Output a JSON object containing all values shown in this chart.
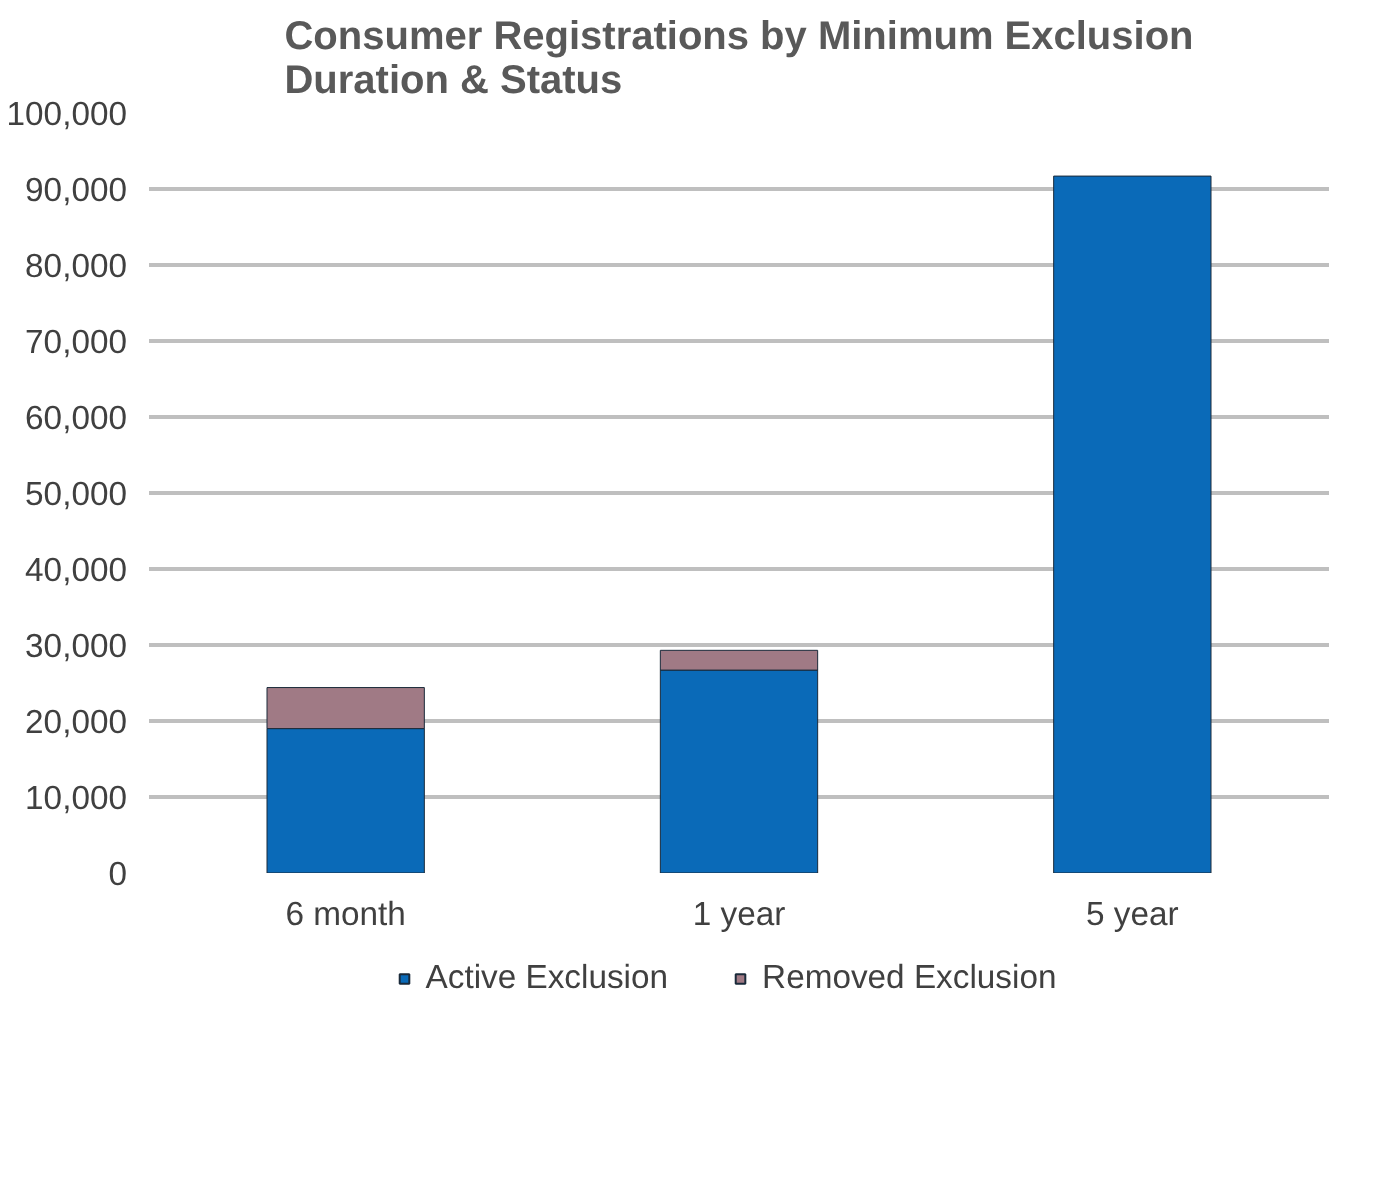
{
  "chart_data": {
    "type": "bar",
    "title": "Consumer Registrations by Minimum Exclusion\nDuration & Status",
    "categories": [
      "6 month",
      "1 year",
      "5 year"
    ],
    "stacked": true,
    "series": [
      {
        "name": "Active Exclusion",
        "color": "#0a6ab8",
        "values": [
          19000,
          26700,
          91700
        ]
      },
      {
        "name": "Removed Exclusion",
        "color": "#a07a85",
        "values": [
          5400,
          2600,
          0
        ]
      }
    ],
    "ylim": [
      0,
      100000
    ],
    "yticks": [
      {
        "value": 0,
        "label": "0"
      },
      {
        "value": 10000,
        "label": "10,000"
      },
      {
        "value": 20000,
        "label": "20,000"
      },
      {
        "value": 30000,
        "label": "30,000"
      },
      {
        "value": 40000,
        "label": "40,000"
      },
      {
        "value": 50000,
        "label": "50,000"
      },
      {
        "value": 60000,
        "label": "60,000"
      },
      {
        "value": 70000,
        "label": "70,000"
      },
      {
        "value": 80000,
        "label": "80,000"
      },
      {
        "value": 90000,
        "label": "90,000"
      },
      {
        "value": 100000,
        "label": "100,000"
      }
    ],
    "grid": "y",
    "legend": "bottom"
  }
}
